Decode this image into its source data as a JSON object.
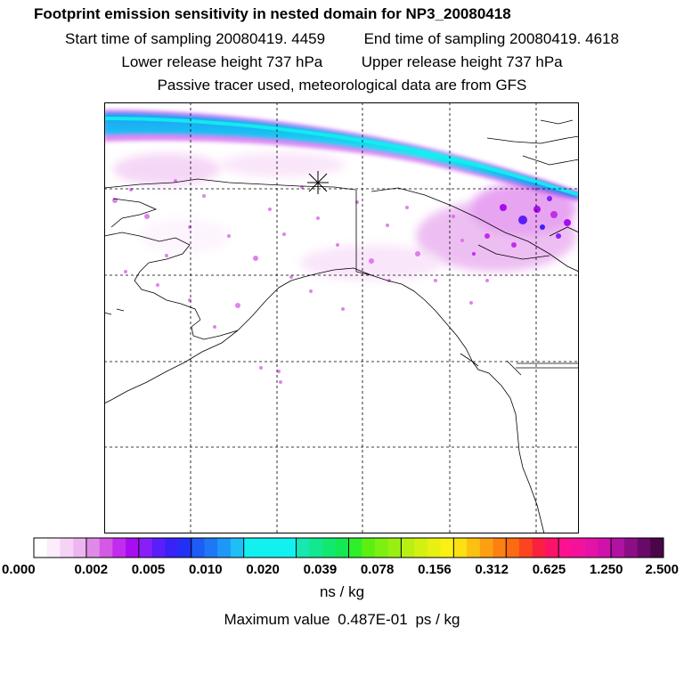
{
  "header": {
    "title": "Footprint emission sensitivity in nested domain for NP3_20080418",
    "start_label": "Start time of sampling",
    "start_value": "20080419.  4459",
    "end_label": "End time of sampling",
    "end_value": "20080419.  4618",
    "lower_label": "Lower release height",
    "lower_value": "737 hPa",
    "upper_label": "Upper release height",
    "upper_value": "737 hPa",
    "subtitle": "Passive tracer used, meteorological data are from GFS"
  },
  "map": {
    "release_marker": "asterisk-release-point",
    "gridlines": "dashed"
  },
  "colorbar": {
    "tick_labels": [
      "0.000",
      "0.002",
      "0.005",
      "0.010",
      "0.020",
      "0.039",
      "0.078",
      "0.156",
      "0.312",
      "0.625",
      "1.250",
      "2.500"
    ],
    "colors": [
      [
        "#ffffff",
        "#fcecfc",
        "#f6d2f6",
        "#eeb6f0"
      ],
      [
        "#e08ae8",
        "#d45ae6",
        "#c22cec",
        "#a80cf0"
      ],
      [
        "#8a1ef8",
        "#5a1ef8",
        "#3822f6",
        "#2030f4"
      ],
      [
        "#1e5cf6",
        "#1e78f6",
        "#1e98f6",
        "#1ebef6"
      ],
      [
        "#12f0f0",
        "#12f0f0",
        "#12f0f0",
        "#12f0f0"
      ],
      [
        "#16e8b0",
        "#12e890",
        "#12e870",
        "#14e854"
      ],
      [
        "#2ef02a",
        "#5cf012",
        "#7cf012",
        "#98f012"
      ],
      [
        "#b8f012",
        "#d2f012",
        "#e8f012",
        "#fcf012"
      ],
      [
        "#fce012",
        "#fcc012",
        "#fca012",
        "#fc8012"
      ],
      [
        "#fc6a12",
        "#fc4420",
        "#fc2040",
        "#fc1268"
      ],
      [
        "#fc1290",
        "#f2129c",
        "#e412a6",
        "#d012ac"
      ],
      [
        "#b012a4",
        "#8c0e86",
        "#6a0a68",
        "#4a0648"
      ]
    ],
    "units": "ns / kg",
    "max_label": "Maximum value",
    "max_value": "0.487E-01",
    "max_units": "ps / kg"
  }
}
